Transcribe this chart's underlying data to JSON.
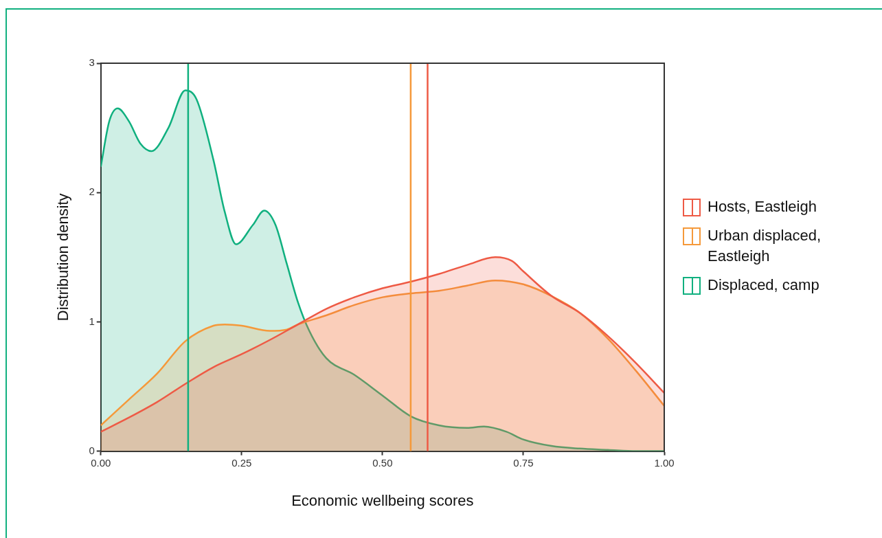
{
  "chart_data": {
    "type": "area",
    "xlabel": "Economic wellbeing scores",
    "ylabel": "Distribution density",
    "xlim": [
      0,
      1
    ],
    "ylim": [
      0,
      3
    ],
    "xticks": [
      {
        "value": 0,
        "label": "0.00"
      },
      {
        "value": 0.25,
        "label": "0.25"
      },
      {
        "value": 0.5,
        "label": "0.50"
      },
      {
        "value": 0.75,
        "label": "0.75"
      },
      {
        "value": 1,
        "label": "1.00"
      }
    ],
    "yticks": [
      0,
      1,
      2,
      3
    ],
    "grid": false,
    "legend": "right",
    "series": [
      {
        "name": "Hosts, Eastleigh",
        "color": "#ee5a45",
        "x": [
          0,
          0.05,
          0.1,
          0.15,
          0.2,
          0.25,
          0.3,
          0.35,
          0.4,
          0.45,
          0.5,
          0.55,
          0.6,
          0.65,
          0.7,
          0.73,
          0.75,
          0.8,
          0.85,
          0.9,
          0.95,
          1
        ],
        "values": [
          0.15,
          0.26,
          0.38,
          0.52,
          0.65,
          0.75,
          0.86,
          0.98,
          1.1,
          1.19,
          1.26,
          1.31,
          1.37,
          1.44,
          1.5,
          1.47,
          1.39,
          1.2,
          1.07,
          0.89,
          0.68,
          0.45
        ]
      },
      {
        "name": "Urban displaced,\nEastleigh",
        "color": "#f5993a",
        "x": [
          0,
          0.05,
          0.1,
          0.15,
          0.2,
          0.22,
          0.25,
          0.3,
          0.33,
          0.35,
          0.4,
          0.45,
          0.5,
          0.55,
          0.6,
          0.65,
          0.7,
          0.75,
          0.8,
          0.85,
          0.9,
          0.95,
          1
        ],
        "values": [
          0.2,
          0.4,
          0.6,
          0.85,
          0.97,
          0.98,
          0.97,
          0.93,
          0.94,
          0.98,
          1.05,
          1.13,
          1.19,
          1.22,
          1.24,
          1.28,
          1.32,
          1.29,
          1.2,
          1.07,
          0.87,
          0.62,
          0.35
        ]
      },
      {
        "name": "Displaced, camp",
        "color": "#10b07f",
        "x": [
          0,
          0.015,
          0.03,
          0.05,
          0.07,
          0.09,
          0.12,
          0.15,
          0.17,
          0.2,
          0.22,
          0.24,
          0.27,
          0.29,
          0.31,
          0.33,
          0.35,
          0.37,
          0.4,
          0.45,
          0.5,
          0.55,
          0.6,
          0.65,
          0.68,
          0.72,
          0.75,
          0.8,
          0.85,
          0.9,
          0.95,
          1
        ],
        "values": [
          2.2,
          2.55,
          2.65,
          2.55,
          2.38,
          2.32,
          2.5,
          2.79,
          2.72,
          2.25,
          1.85,
          1.6,
          1.75,
          1.86,
          1.75,
          1.45,
          1.15,
          0.93,
          0.72,
          0.59,
          0.43,
          0.27,
          0.2,
          0.18,
          0.19,
          0.15,
          0.09,
          0.04,
          0.02,
          0.01,
          0,
          0
        ]
      }
    ],
    "ref_lines": [
      {
        "axis": "x",
        "value": 0.155,
        "color": "#10b07f"
      },
      {
        "axis": "x",
        "value": 0.55,
        "color": "#f5993a"
      },
      {
        "axis": "x",
        "value": 0.58,
        "color": "#ee5a45"
      }
    ]
  }
}
